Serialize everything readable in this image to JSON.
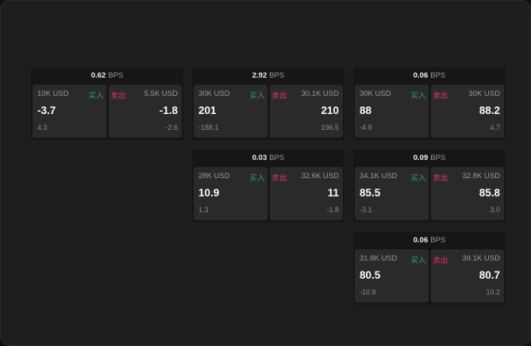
{
  "bps_unit": "BPS",
  "buy_label": "买入",
  "sell_label": "卖出",
  "colors": {
    "buy": "#2fa463",
    "sell": "#e0365d"
  },
  "widgets": [
    {
      "bps": "0.62",
      "buy": {
        "qty": "10K USD",
        "price": "-3.7",
        "change": "4.3"
      },
      "sell": {
        "qty": "5.5K USD",
        "price": "-1.8",
        "change": "-2.6"
      }
    },
    {
      "bps": "2.92",
      "buy": {
        "qty": "30K USD",
        "price": "201",
        "change": "-188.1"
      },
      "sell": {
        "qty": "30.1K USD",
        "price": "210",
        "change": "196.5"
      }
    },
    {
      "bps": "0.06",
      "buy": {
        "qty": "30K USD",
        "price": "88",
        "change": "-4.9"
      },
      "sell": {
        "qty": "30K USD",
        "price": "88.2",
        "change": "4.7"
      }
    },
    {
      "bps": "0.03",
      "buy": {
        "qty": "28K USD",
        "price": "10.9",
        "change": "1.3"
      },
      "sell": {
        "qty": "32.6K USD",
        "price": "11",
        "change": "-1.8"
      }
    },
    {
      "bps": "0.09",
      "buy": {
        "qty": "34.1K USD",
        "price": "85.5",
        "change": "-3.1"
      },
      "sell": {
        "qty": "32.8K USD",
        "price": "85.8",
        "change": "3.0"
      }
    },
    {
      "bps": "0.06",
      "buy": {
        "qty": "31.8K USD",
        "price": "80.5",
        "change": "-10.8"
      },
      "sell": {
        "qty": "39.1K USD",
        "price": "80.7",
        "change": "10.2"
      }
    }
  ]
}
